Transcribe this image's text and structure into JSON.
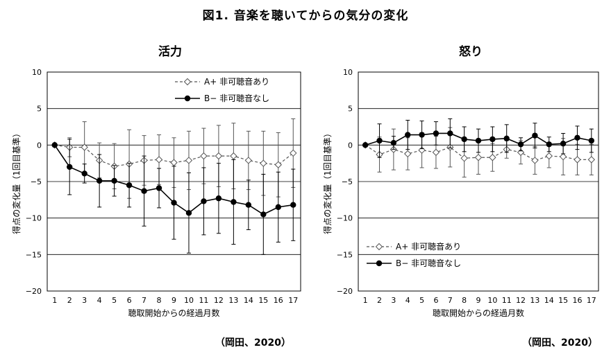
{
  "figure_title": "図1. 音楽を聴いてからの気分の変化",
  "source_left": "（岡田、2020）",
  "source_right": "（岡田、2020）",
  "chart_data": [
    {
      "type": "line",
      "title": "活力",
      "xlabel": "聴取開始からの経過月数",
      "ylabel": "得点の変化量（1回目基準）",
      "x": [
        1,
        2,
        3,
        4,
        5,
        6,
        7,
        8,
        9,
        10,
        11,
        12,
        13,
        14,
        15,
        16,
        17
      ],
      "xlim": [
        0.5,
        17.5
      ],
      "ylim": [
        -20,
        10
      ],
      "yticks": [
        10,
        5,
        0,
        -5,
        -10,
        -15,
        -20
      ],
      "ytick_labels": [
        "10",
        "5",
        "0",
        "−5",
        "−10",
        "−15",
        "−20"
      ],
      "grid": "horizontal",
      "legend_position": "top-right",
      "series": [
        {
          "name": "A+ 非可聴音あり",
          "style": "dashed",
          "marker": "open-diamond",
          "color": "#555555",
          "values": [
            0,
            -0.3,
            -0.3,
            -2.1,
            -2.9,
            -2.6,
            -2.1,
            -2.0,
            -2.4,
            -2.1,
            -1.5,
            -1.5,
            -1.5,
            -2.1,
            -2.5,
            -2.7,
            -1.1
          ],
          "error": [
            0,
            1.3,
            3.5,
            2.4,
            3.1,
            4.7,
            3.4,
            3.4,
            3.4,
            4.0,
            3.8,
            4.2,
            4.5,
            4.0,
            4.4,
            4.4,
            4.7
          ]
        },
        {
          "name": "B− 非可聴音なし",
          "style": "solid",
          "marker": "filled-circle",
          "color": "#000000",
          "values": [
            0,
            -3.0,
            -3.9,
            -4.9,
            -4.9,
            -5.5,
            -6.3,
            -5.9,
            -7.9,
            -9.3,
            -7.7,
            -7.3,
            -7.8,
            -8.2,
            -9.5,
            -8.5,
            -8.2
          ],
          "error": [
            0,
            3.8,
            1.3,
            3.6,
            2.1,
            3.0,
            4.8,
            2.7,
            5.0,
            5.5,
            4.6,
            4.8,
            5.8,
            3.4,
            5.5,
            4.8,
            4.9
          ]
        }
      ]
    },
    {
      "type": "line",
      "title": "怒り",
      "xlabel": "聴取開始からの経過月数",
      "ylabel": "得点の変化量（1回目基準）",
      "x": [
        1,
        2,
        3,
        4,
        5,
        6,
        7,
        8,
        9,
        10,
        11,
        12,
        13,
        14,
        15,
        16,
        17
      ],
      "xlim": [
        0.5,
        17.5
      ],
      "ylim": [
        -20,
        10
      ],
      "yticks": [
        10,
        5,
        0,
        -5,
        -10,
        -15,
        -20
      ],
      "ytick_labels": [
        "10",
        "5",
        "0",
        "−5",
        "−10",
        "−15",
        "−20"
      ],
      "grid": "horizontal",
      "legend_position": "bottom-left",
      "series": [
        {
          "name": "A+ 非可聴音あり",
          "style": "dashed",
          "marker": "open-diamond",
          "color": "#555555",
          "values": [
            0,
            -1.3,
            -0.6,
            -1.2,
            -0.7,
            -1.0,
            -0.3,
            -1.8,
            -1.7,
            -1.7,
            -0.6,
            -1.0,
            -2.1,
            -1.5,
            -1.6,
            -2.0,
            -2.0
          ],
          "error": [
            0,
            2.4,
            2.8,
            2.2,
            2.4,
            2.2,
            2.7,
            2.6,
            2.3,
            1.9,
            1.2,
            1.6,
            1.9,
            1.6,
            2.5,
            2.1,
            2.1
          ]
        },
        {
          "name": "B− 非可聴音なし",
          "style": "solid",
          "marker": "filled-circle",
          "color": "#000000",
          "values": [
            0,
            0.6,
            0.3,
            1.4,
            1.4,
            1.6,
            1.6,
            0.8,
            0.6,
            0.8,
            0.9,
            0.1,
            1.3,
            0.1,
            0.2,
            1.0,
            0.6
          ],
          "error": [
            0,
            2.3,
            0.9,
            2.0,
            1.9,
            1.6,
            2.0,
            1.7,
            1.6,
            1.7,
            1.9,
            0.9,
            1.7,
            1.0,
            1.4,
            1.6,
            1.6
          ]
        }
      ]
    }
  ]
}
